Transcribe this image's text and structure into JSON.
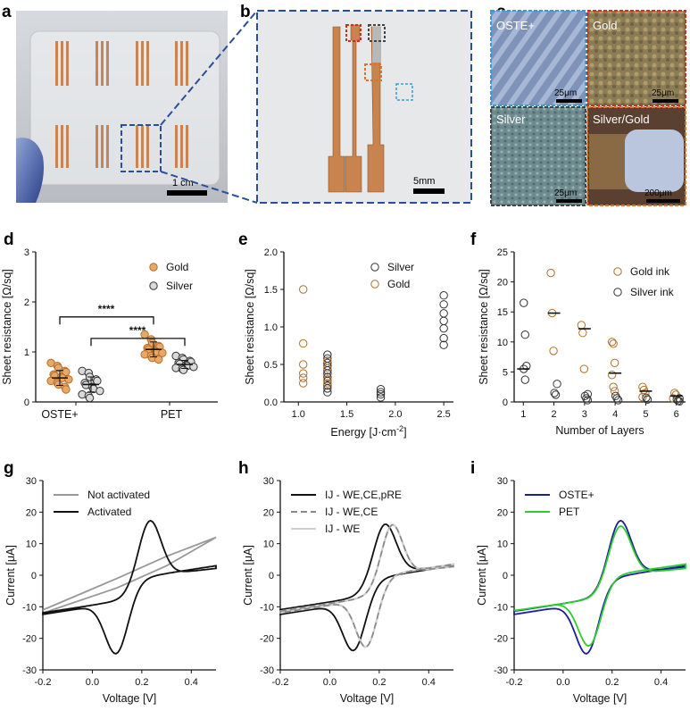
{
  "panel_labels": {
    "a": "a",
    "b": "b",
    "c": "c",
    "d": "d",
    "e": "e",
    "f": "f",
    "g": "g",
    "h": "h",
    "i": "i"
  },
  "colors": {
    "gold": "#e9a868",
    "gold_edge": "#b26f2a",
    "silver": "#d9d9d9",
    "silver_edge": "#333333",
    "red": "#c8311f",
    "orange": "#e2702c",
    "blue": "#2a4f9a",
    "green": "#2ecc2e",
    "navy": "#1b1f9a"
  },
  "photos": {
    "a_scale": "1 cm",
    "b_scale": "5mm",
    "c_tiles": [
      {
        "name": "OSTE+",
        "scale": "25μm"
      },
      {
        "name": "Gold",
        "scale": "25μm"
      },
      {
        "name": "Silver",
        "scale": "25μm"
      },
      {
        "name": "Silver/Gold",
        "scale": "200μm"
      }
    ]
  },
  "chart_data": [
    {
      "id": "d",
      "type": "scatter",
      "ylabel": "Sheet resistance [Ω/sq]",
      "xlabel": "",
      "ylim": [
        0,
        3
      ],
      "yticks": [
        "0",
        "1",
        "2",
        "3"
      ],
      "categories": [
        "OSTE+",
        "PET"
      ],
      "legend": [
        "Gold",
        "Silver"
      ],
      "significance": [
        "****",
        "****"
      ],
      "series": [
        {
          "name": "Gold",
          "group": "OSTE+",
          "mean": 0.48,
          "sd": 0.15,
          "values": [
            0.78,
            0.72,
            0.68,
            0.62,
            0.6,
            0.55,
            0.52,
            0.5,
            0.48,
            0.45,
            0.42,
            0.38,
            0.35,
            0.3,
            0.25
          ]
        },
        {
          "name": "Silver",
          "group": "OSTE+",
          "mean": 0.35,
          "sd": 0.15,
          "values": [
            0.62,
            0.58,
            0.5,
            0.45,
            0.42,
            0.38,
            0.34,
            0.3,
            0.26,
            0.22,
            0.15,
            0.12,
            0.08
          ]
        },
        {
          "name": "Gold",
          "group": "PET",
          "mean": 1.05,
          "sd": 0.15,
          "values": [
            1.35,
            1.25,
            1.18,
            1.12,
            1.1,
            1.08,
            1.05,
            1.02,
            1.0,
            0.98,
            0.95,
            0.92,
            0.88,
            0.85
          ]
        },
        {
          "name": "Silver",
          "group": "PET",
          "mean": 0.75,
          "sd": 0.08,
          "values": [
            0.92,
            0.88,
            0.85,
            0.82,
            0.8,
            0.78,
            0.76,
            0.74,
            0.72,
            0.7,
            0.68,
            0.66,
            0.64
          ]
        }
      ]
    },
    {
      "id": "e",
      "type": "scatter",
      "xlabel": "Energy [J·cm",
      "xlabel_sup": "-2",
      "xlabel_end": "]",
      "ylabel": "Sheet resistance [Ω/sq]",
      "xlim": [
        0.85,
        2.6
      ],
      "ylim": [
        0,
        2.0
      ],
      "xticks": [
        "1.0",
        "1.5",
        "2.0",
        "2.5"
      ],
      "xtick_values": [
        1.0,
        1.5,
        2.0,
        2.5
      ],
      "yticks": [
        "0.0",
        "0.5",
        "1.0",
        "1.5",
        "2.0"
      ],
      "legend": [
        "Silver",
        "Gold"
      ],
      "series": [
        {
          "name": "Gold",
          "x": 1.05,
          "values": [
            1.5,
            0.78,
            0.5,
            0.38,
            0.32,
            0.25
          ]
        },
        {
          "name": "Silver",
          "x": 1.3,
          "values": [
            0.63,
            0.58,
            0.52,
            0.48,
            0.42,
            0.38,
            0.33,
            0.28,
            0.22,
            0.18,
            0.13
          ]
        },
        {
          "name": "Gold",
          "x": 1.3,
          "values": [
            0.55,
            0.45,
            0.3,
            0.25
          ]
        },
        {
          "name": "Silver",
          "x": 1.85,
          "values": [
            0.17,
            0.13,
            0.1,
            0.06
          ]
        },
        {
          "name": "Silver",
          "x": 2.5,
          "values": [
            1.42,
            1.3,
            1.18,
            1.08,
            0.98,
            0.85,
            0.76
          ]
        }
      ]
    },
    {
      "id": "f",
      "type": "scatter",
      "xlabel": "Number of Layers",
      "ylabel": "Sheet resistance [Ω/sq]",
      "xlim": [
        0.7,
        6.3
      ],
      "ylim": [
        0,
        25
      ],
      "xticks": [
        "1",
        "2",
        "3",
        "4",
        "5",
        "6"
      ],
      "yticks": [
        "0",
        "5",
        "10",
        "15",
        "20",
        "25"
      ],
      "legend": [
        "Gold ink",
        "Silver ink"
      ],
      "series": [
        {
          "name": "Gold ink",
          "points": [
            [
              2,
              21.5
            ],
            [
              2,
              14.8
            ],
            [
              2,
              8.5
            ],
            [
              3,
              12.8
            ],
            [
              3,
              11.5
            ],
            [
              3,
              5.5
            ],
            [
              4,
              10
            ],
            [
              4,
              9.7
            ],
            [
              4,
              6.5
            ],
            [
              4,
              4.5
            ],
            [
              4,
              2.5
            ],
            [
              4,
              1.8
            ],
            [
              5,
              2.5
            ],
            [
              5,
              2.0
            ],
            [
              5,
              1.5
            ],
            [
              5,
              0.8
            ],
            [
              6,
              1.5
            ],
            [
              6,
              1.2
            ],
            [
              6,
              0.6
            ]
          ]
        },
        {
          "name": "Silver ink",
          "points": [
            [
              1,
              16.5
            ],
            [
              1,
              11.2
            ],
            [
              1,
              6
            ],
            [
              1,
              5.5
            ],
            [
              1,
              3.7
            ],
            [
              2,
              3
            ],
            [
              2,
              1.5
            ],
            [
              2,
              1.2
            ],
            [
              3,
              1.3
            ],
            [
              3,
              1.0
            ],
            [
              3,
              0.6
            ],
            [
              3,
              0.3
            ],
            [
              4,
              1.0
            ],
            [
              4,
              0.6
            ],
            [
              4,
              0.3
            ],
            [
              5,
              0.7
            ],
            [
              5,
              0.4
            ],
            [
              6,
              0.6
            ],
            [
              6,
              0.4
            ],
            [
              6,
              0.2
            ],
            [
              6,
              0.1
            ]
          ]
        }
      ],
      "means": [
        [
          1,
          5.5
        ],
        [
          2,
          14.8
        ],
        [
          3,
          12.2
        ],
        [
          4,
          4.8
        ],
        [
          5,
          1.8
        ],
        [
          6,
          1.0
        ]
      ]
    },
    {
      "id": "g",
      "type": "line",
      "xlabel": "Voltage [V]",
      "ylabel": "Current [μA]",
      "xlim": [
        -0.2,
        0.5
      ],
      "ylim": [
        -30,
        30
      ],
      "xticks": [
        "-0.2",
        "0.0",
        "0.2",
        "0.4"
      ],
      "xtick_values": [
        -0.2,
        0.0,
        0.2,
        0.4
      ],
      "yticks": [
        "-30",
        "-20",
        "-10",
        "0",
        "10",
        "20",
        "30"
      ],
      "series": [
        {
          "name": "Not activated",
          "style": "gray"
        },
        {
          "name": "Activated",
          "style": "black"
        }
      ]
    },
    {
      "id": "h",
      "type": "line",
      "xlabel": "Voltage [V]",
      "ylabel": "Current [μA]",
      "xlim": [
        -0.2,
        0.5
      ],
      "ylim": [
        -30,
        30
      ],
      "xticks": [
        "-0.2",
        "0.0",
        "0.2",
        "0.4"
      ],
      "xtick_values": [
        -0.2,
        0.0,
        0.2,
        0.4
      ],
      "yticks": [
        "-30",
        "-20",
        "-10",
        "0",
        "10",
        "20",
        "30"
      ],
      "series": [
        {
          "name": "IJ - WE,CE,pRE",
          "style": "black"
        },
        {
          "name": "IJ - WE,CE",
          "style": "dash"
        },
        {
          "name": "IJ - WE",
          "style": "lightgray"
        }
      ]
    },
    {
      "id": "i",
      "type": "line",
      "xlabel": "Voltage [V]",
      "ylabel": "Current [μA]",
      "xlim": [
        -0.2,
        0.5
      ],
      "ylim": [
        -30,
        30
      ],
      "xticks": [
        "-0.2",
        "0.0",
        "0.2",
        "0.4"
      ],
      "xtick_values": [
        -0.2,
        0.0,
        0.2,
        0.4
      ],
      "yticks": [
        "-30",
        "-20",
        "-10",
        "0",
        "10",
        "20",
        "30"
      ],
      "series": [
        {
          "name": "OSTE+",
          "style": "navy"
        },
        {
          "name": "PET",
          "style": "green"
        }
      ]
    }
  ]
}
